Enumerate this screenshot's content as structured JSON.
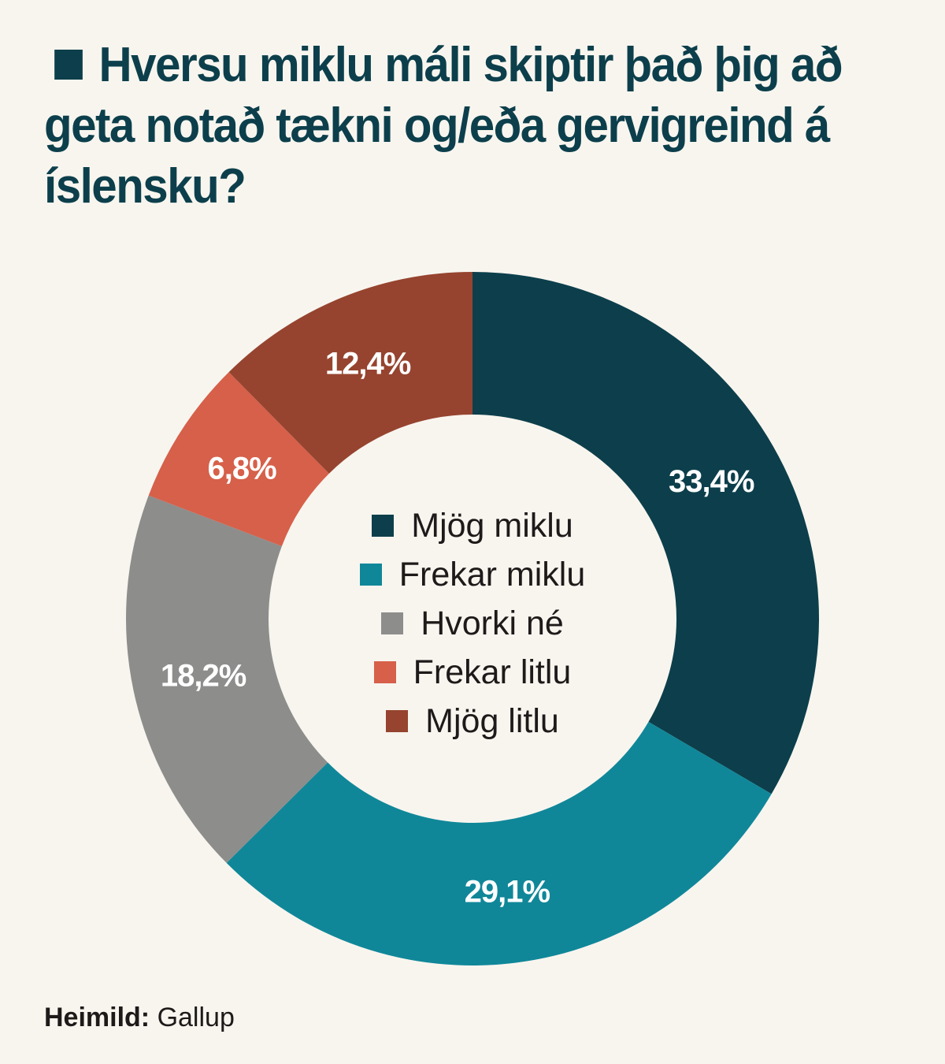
{
  "header": {
    "title": "Hversu miklu máli skiptir það þig að geta notað tækni og/eða gervigreind á íslensku?",
    "marker_color": "#0c3f4b"
  },
  "legend": {
    "items": [
      {
        "label": "Mjög miklu",
        "color": "#0c3f4b"
      },
      {
        "label": "Frekar miklu",
        "color": "#108799"
      },
      {
        "label": "Hvorki né",
        "color": "#8d8d8c"
      },
      {
        "label": "Frekar litlu",
        "color": "#d6604a"
      },
      {
        "label": "Mjög litlu",
        "color": "#96442f"
      }
    ]
  },
  "footer": {
    "source_label": "Heimild:",
    "source_value": "Gallup"
  },
  "colors": {
    "background": "#f8f5ef",
    "title": "#0c3f4b",
    "text": "#1e1a1a"
  },
  "chart_data": {
    "type": "pie",
    "subtype": "donut",
    "title": "Hversu miklu máli skiptir það þig að geta notað tækni og/eða gervigreind á íslensku?",
    "categories": [
      "Mjög miklu",
      "Frekar miklu",
      "Hvorki né",
      "Frekar litlu",
      "Mjög litlu"
    ],
    "values": [
      33.4,
      29.1,
      18.2,
      6.8,
      12.4
    ],
    "labels": [
      "33,4%",
      "29,1%",
      "18,2%",
      "6,8%",
      "12,4%"
    ],
    "colors": [
      "#0c3f4b",
      "#108799",
      "#8d8d8c",
      "#d6604a",
      "#96442f"
    ],
    "start_angle": "12 o'clock, clockwise",
    "legend_position": "center of donut",
    "source": "Heimild: Gallup",
    "unit": "%"
  }
}
